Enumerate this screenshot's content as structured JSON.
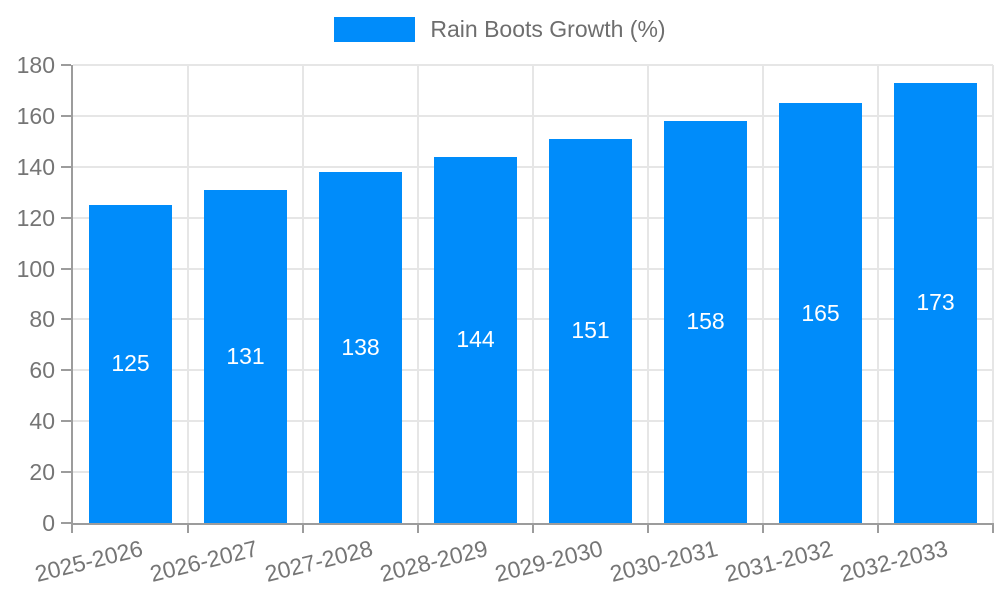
{
  "chart_data": {
    "type": "bar",
    "title": "Rain Boots Growth (%)",
    "legend_position": "top-center",
    "categories": [
      "2025-2026",
      "2026-2027",
      "2027-2028",
      "2028-2029",
      "2029-2030",
      "2030-2031",
      "2031-2032",
      "2032-2033"
    ],
    "series": [
      {
        "name": "Rain Boots Growth (%)",
        "values": [
          125,
          131,
          138,
          144,
          151,
          158,
          165,
          173
        ]
      }
    ],
    "value_labels_shown": true,
    "xlabel": "",
    "ylabel": "",
    "ylim": [
      0,
      180
    ],
    "yticks": [
      0,
      20,
      40,
      60,
      80,
      100,
      120,
      140,
      160,
      180
    ],
    "grid": true,
    "colors": {
      "bar": "#008cfa",
      "value_label": "#ffffff",
      "grid_line": "#e6e6e6",
      "axis_line": "#9c9c9c",
      "tick_label": "#757575",
      "legend_text": "#6e6e6e",
      "background": "#ffffff"
    }
  }
}
